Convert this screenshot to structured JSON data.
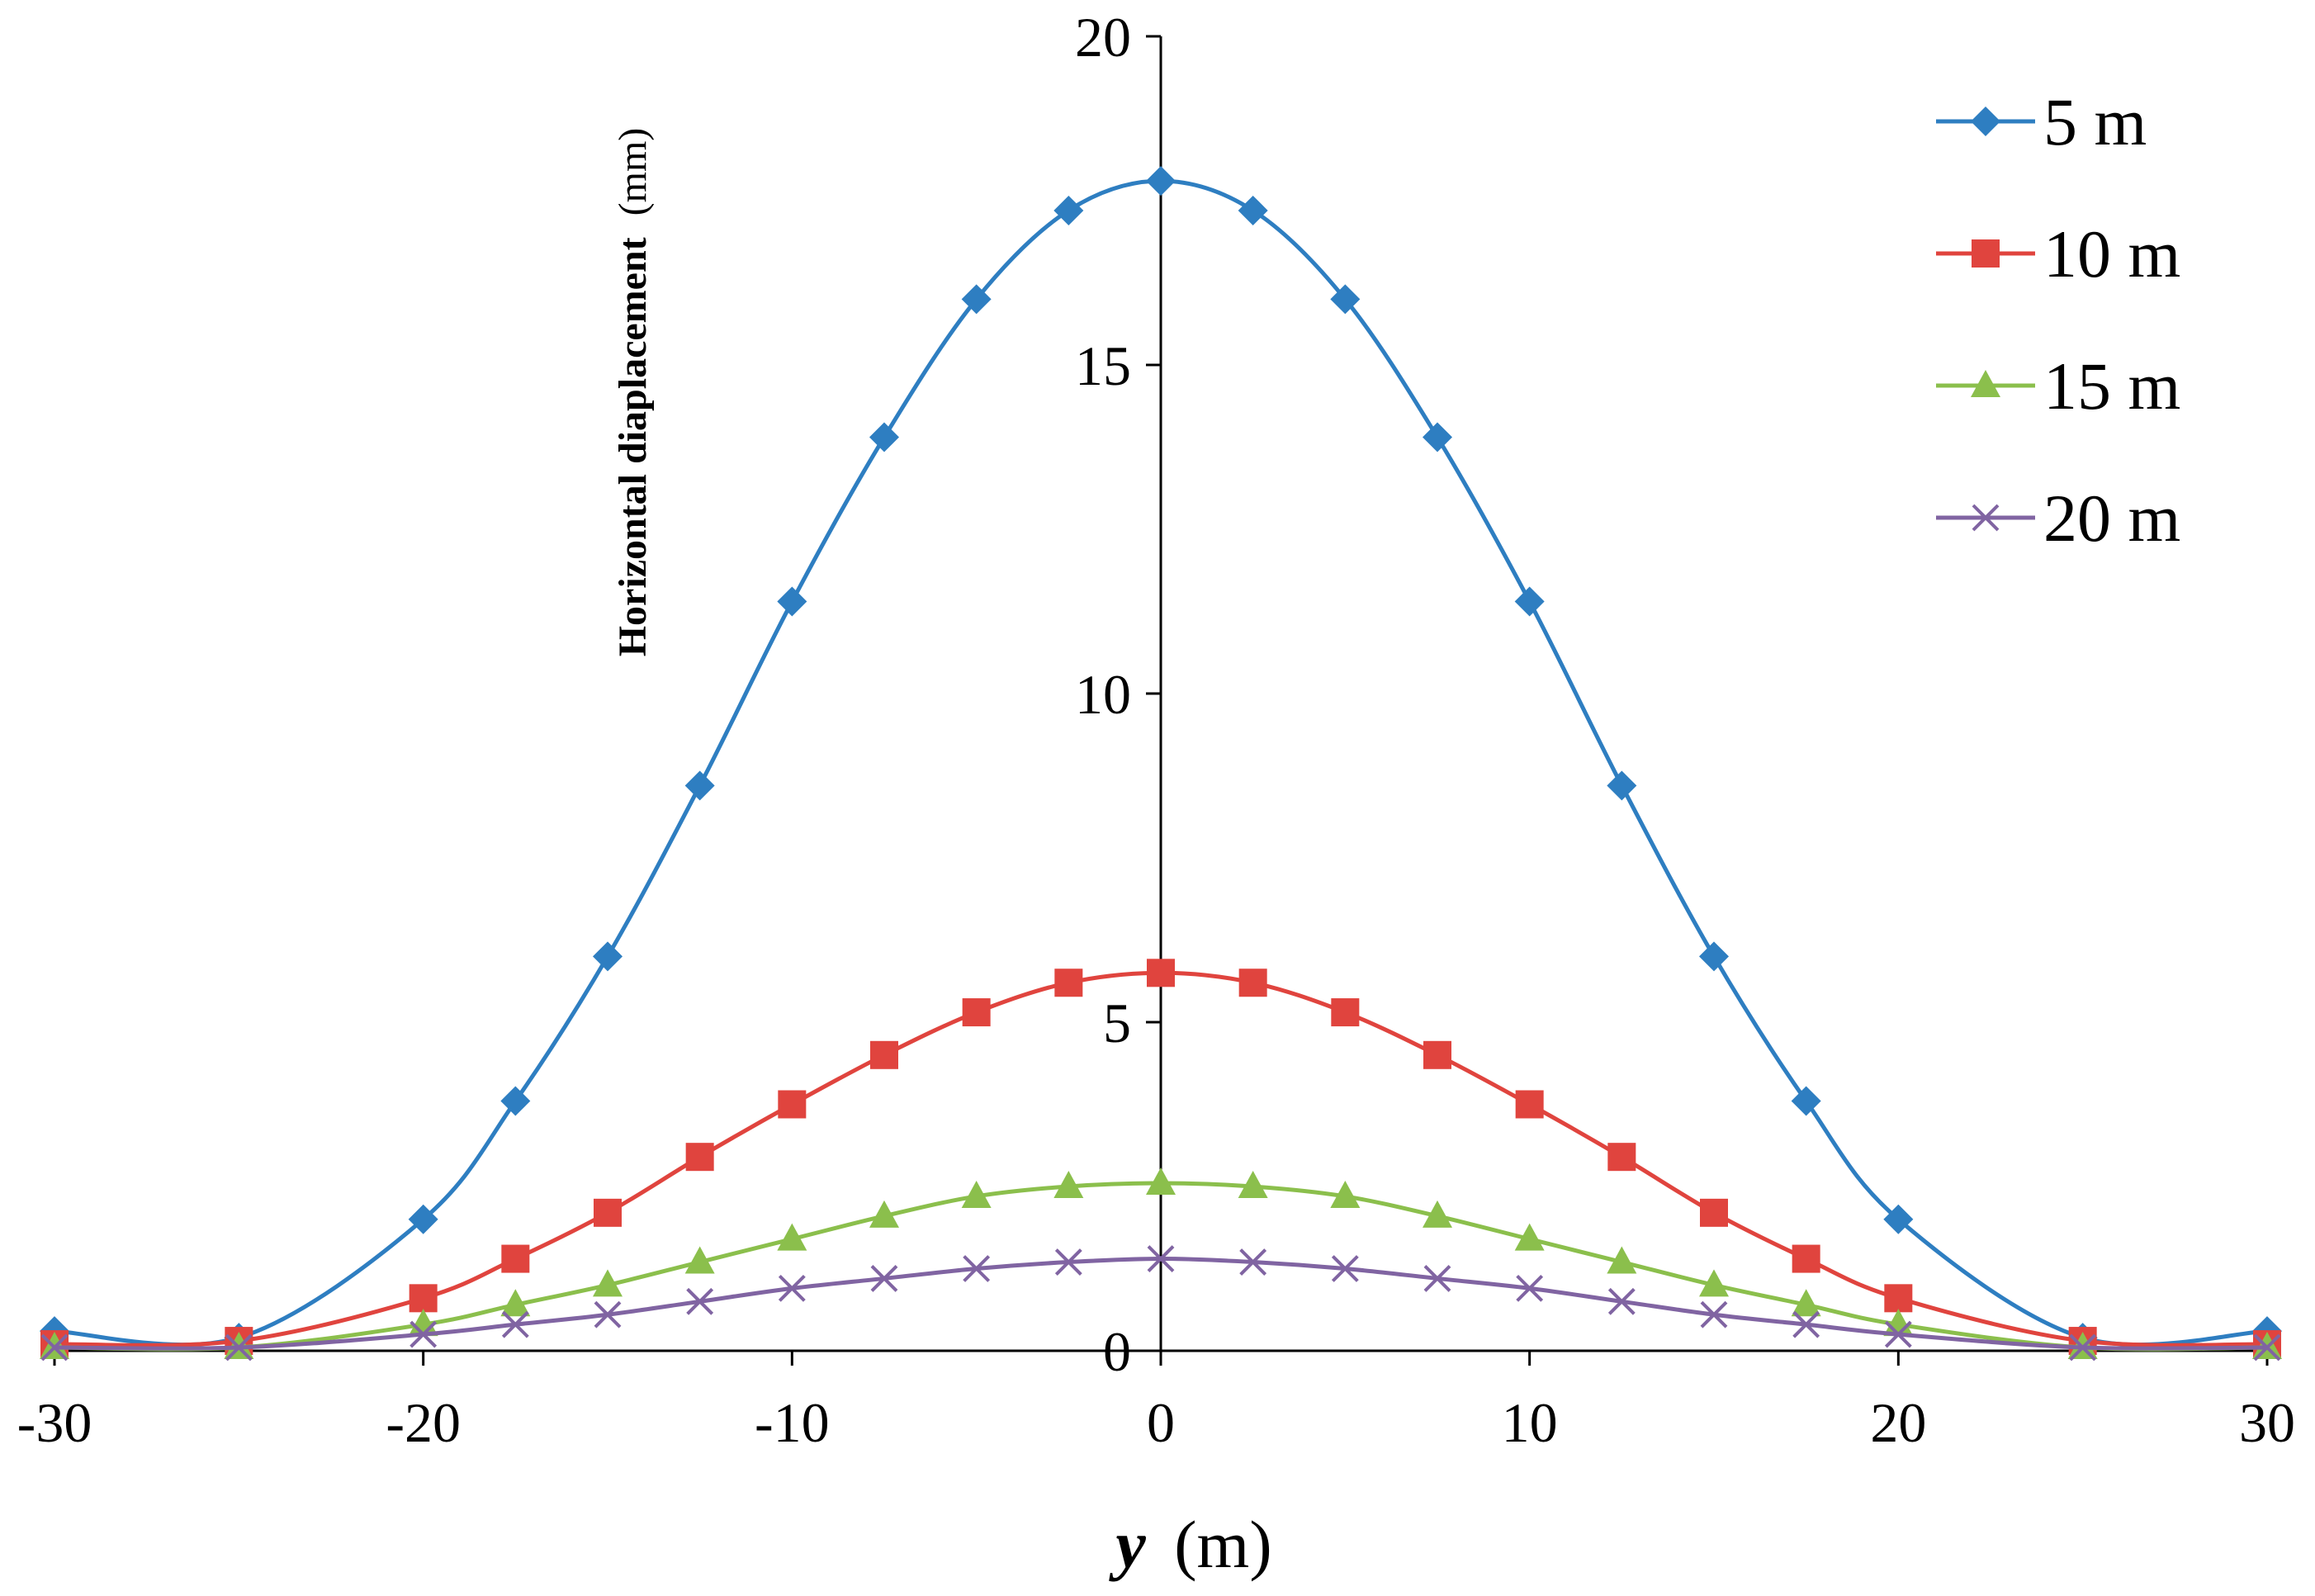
{
  "chart_data": {
    "type": "line",
    "title": "",
    "xlabel_var": "y",
    "xlabel_unit": "(m)",
    "ylabel_main": "Horizontal diaplacement",
    "ylabel_unit": "(mm)",
    "xlim": [
      -30,
      30
    ],
    "ylim": [
      0,
      20
    ],
    "xticks": [
      -30,
      -20,
      -10,
      0,
      10,
      20,
      30
    ],
    "yticks": [
      0,
      5,
      10,
      15,
      20
    ],
    "xtick_labels": [
      "-30",
      "-20",
      "-10",
      "0",
      "10",
      "20",
      "30"
    ],
    "ytick_labels": [
      "0",
      "5",
      "10",
      "15",
      "20"
    ],
    "grid": false,
    "legend_position": "top-right",
    "series": [
      {
        "name": "5 m",
        "color": "#2E7EC1",
        "marker": "diamond",
        "x": [
          -30,
          -25,
          -20,
          -17.5,
          -15,
          -12.5,
          -10,
          -7.5,
          -5,
          -2.5,
          0,
          2.5,
          5,
          7.5,
          10,
          12.5,
          15,
          17.5,
          20,
          25,
          30
        ],
        "values": [
          0.3,
          0.2,
          2.0,
          3.8,
          6.0,
          8.6,
          11.4,
          13.9,
          16.0,
          17.35,
          17.8,
          17.35,
          16.0,
          13.9,
          11.4,
          8.6,
          6.0,
          3.8,
          2.0,
          0.2,
          0.3
        ]
      },
      {
        "name": "10 m",
        "color": "#E0443E",
        "marker": "square",
        "x": [
          -30,
          -25,
          -20,
          -17.5,
          -15,
          -12.5,
          -10,
          -7.5,
          -5,
          -2.5,
          0,
          2.5,
          5,
          7.5,
          10,
          12.5,
          15,
          17.5,
          20,
          25,
          30
        ],
        "values": [
          0.1,
          0.15,
          0.8,
          1.4,
          2.1,
          2.95,
          3.75,
          4.5,
          5.15,
          5.6,
          5.75,
          5.6,
          5.15,
          4.5,
          3.75,
          2.95,
          2.1,
          1.4,
          0.8,
          0.15,
          0.1
        ]
      },
      {
        "name": "15 m",
        "color": "#8BBF4C",
        "marker": "triangle",
        "x": [
          -30,
          -25,
          -20,
          -17.5,
          -15,
          -12.5,
          -10,
          -7.5,
          -5,
          -2.5,
          0,
          2.5,
          5,
          7.5,
          10,
          12.5,
          15,
          17.5,
          20,
          25,
          30
        ],
        "values": [
          0.05,
          0.05,
          0.4,
          0.7,
          1.0,
          1.35,
          1.7,
          2.05,
          2.35,
          2.5,
          2.55,
          2.5,
          2.35,
          2.05,
          1.7,
          1.35,
          1.0,
          0.7,
          0.4,
          0.05,
          0.05
        ]
      },
      {
        "name": "20 m",
        "color": "#8064A2",
        "marker": "x",
        "x": [
          -30,
          -25,
          -20,
          -17.5,
          -15,
          -12.5,
          -10,
          -7.5,
          -5,
          -2.5,
          0,
          2.5,
          5,
          7.5,
          10,
          12.5,
          15,
          17.5,
          20,
          25,
          30
        ],
        "values": [
          0.05,
          0.05,
          0.25,
          0.4,
          0.55,
          0.75,
          0.95,
          1.1,
          1.25,
          1.35,
          1.4,
          1.35,
          1.25,
          1.1,
          0.95,
          0.75,
          0.55,
          0.4,
          0.25,
          0.05,
          0.05
        ]
      }
    ]
  }
}
